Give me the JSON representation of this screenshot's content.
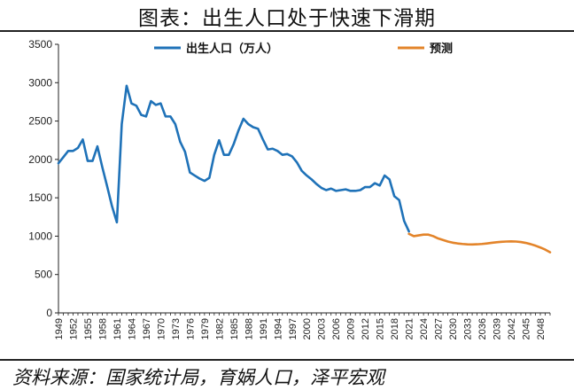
{
  "title": "图表：出生人口处于快速下滑期",
  "source": "资料来源：国家统计局，育娲人口，泽平宏观",
  "colors": {
    "births": "#1f72b8",
    "forecast": "#e3842a",
    "axis": "#222222"
  },
  "chart_data": {
    "type": "line",
    "title": "图表：出生人口处于快速下滑期",
    "xlabel": "",
    "ylabel": "",
    "xlim": [
      1949,
      2050
    ],
    "ylim": [
      0,
      3500
    ],
    "yticks": [
      0,
      500,
      1000,
      1500,
      2000,
      2500,
      3000,
      3500
    ],
    "xticks": [
      1949,
      1952,
      1955,
      1958,
      1961,
      1964,
      1967,
      1970,
      1973,
      1976,
      1979,
      1982,
      1985,
      1988,
      1991,
      1994,
      1997,
      2000,
      2003,
      2006,
      2009,
      2012,
      2015,
      2018,
      2021,
      2024,
      2027,
      2030,
      2033,
      2036,
      2039,
      2042,
      2045,
      2048
    ],
    "legend": "top",
    "grid": false,
    "series": [
      {
        "name": "出生人口（万人）",
        "color": "#1f72b8",
        "x": [
          1949,
          1950,
          1951,
          1952,
          1953,
          1954,
          1955,
          1956,
          1957,
          1958,
          1959,
          1960,
          1961,
          1962,
          1963,
          1964,
          1965,
          1966,
          1967,
          1968,
          1969,
          1970,
          1971,
          1972,
          1973,
          1974,
          1975,
          1976,
          1977,
          1978,
          1979,
          1980,
          1981,
          1982,
          1983,
          1984,
          1985,
          1986,
          1987,
          1988,
          1989,
          1990,
          1991,
          1992,
          1993,
          1994,
          1995,
          1996,
          1997,
          1998,
          1999,
          2000,
          2001,
          2002,
          2003,
          2004,
          2005,
          2006,
          2007,
          2008,
          2009,
          2010,
          2011,
          2012,
          2013,
          2014,
          2015,
          2016,
          2017,
          2018,
          2019,
          2020,
          2021
        ],
        "values": [
          1950,
          2030,
          2110,
          2110,
          2150,
          2260,
          1980,
          1980,
          2170,
          1900,
          1650,
          1390,
          1180,
          2460,
          2960,
          2730,
          2700,
          2580,
          2560,
          2760,
          2710,
          2730,
          2560,
          2560,
          2460,
          2230,
          2100,
          1830,
          1790,
          1750,
          1720,
          1760,
          2060,
          2250,
          2060,
          2060,
          2200,
          2380,
          2530,
          2460,
          2420,
          2400,
          2260,
          2130,
          2140,
          2110,
          2060,
          2070,
          2040,
          1960,
          1850,
          1790,
          1740,
          1680,
          1630,
          1600,
          1620,
          1590,
          1600,
          1610,
          1590,
          1590,
          1600,
          1640,
          1640,
          1690,
          1660,
          1790,
          1740,
          1520,
          1470,
          1200,
          1062
        ]
      },
      {
        "name": "预测",
        "color": "#e3842a",
        "x": [
          2021,
          2022,
          2023,
          2024,
          2025,
          2026,
          2027,
          2028,
          2029,
          2030,
          2031,
          2032,
          2033,
          2034,
          2035,
          2036,
          2037,
          2038,
          2039,
          2040,
          2041,
          2042,
          2043,
          2044,
          2045,
          2046,
          2047,
          2048,
          2049,
          2050
        ],
        "values": [
          1030,
          1000,
          1010,
          1020,
          1020,
          1000,
          970,
          950,
          930,
          915,
          905,
          898,
          893,
          892,
          894,
          898,
          905,
          913,
          920,
          926,
          930,
          932,
          930,
          923,
          912,
          896,
          876,
          852,
          825,
          790
        ]
      }
    ]
  }
}
